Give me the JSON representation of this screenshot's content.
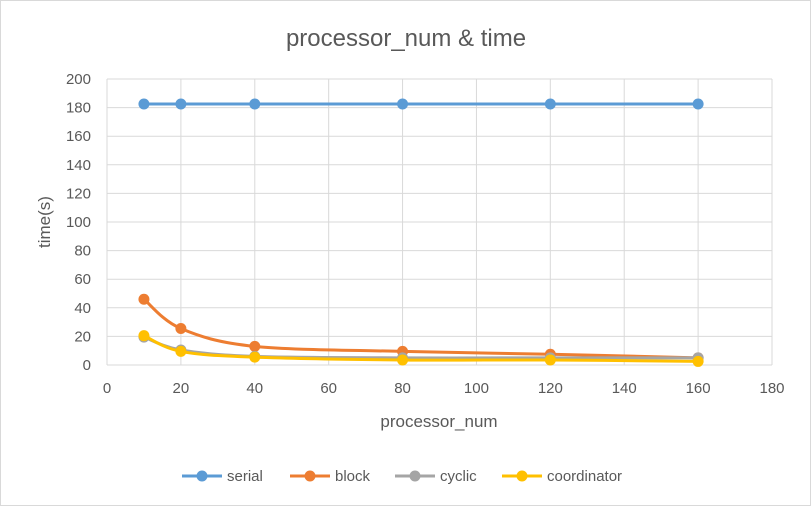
{
  "chart_data": {
    "type": "line",
    "title": "processor_num  & time",
    "xlabel": "processor_num",
    "ylabel": "time(s)",
    "xlim": [
      0,
      180
    ],
    "ylim": [
      0,
      200
    ],
    "x_ticks": [
      0,
      20,
      40,
      60,
      80,
      100,
      120,
      140,
      160,
      180
    ],
    "y_ticks": [
      0,
      20,
      40,
      60,
      80,
      100,
      120,
      140,
      160,
      180,
      200
    ],
    "x": [
      10,
      20,
      40,
      80,
      120,
      160
    ],
    "grid": true,
    "legend_position": "bottom",
    "series": [
      {
        "name": "serial",
        "color": "#5b9bd5",
        "values": [
          182.5,
          182.5,
          182.5,
          182.5,
          182.5,
          182.5
        ]
      },
      {
        "name": "block",
        "color": "#ed7d31",
        "values": [
          46,
          25.5,
          13,
          9.5,
          7.5,
          5
        ]
      },
      {
        "name": "cyclic",
        "color": "#a5a5a5",
        "values": [
          19.5,
          10.5,
          6,
          5,
          5,
          5
        ]
      },
      {
        "name": "coordinator",
        "color": "#ffc000",
        "values": [
          20.5,
          9.5,
          5.5,
          3.5,
          3.5,
          2.5
        ]
      }
    ]
  }
}
